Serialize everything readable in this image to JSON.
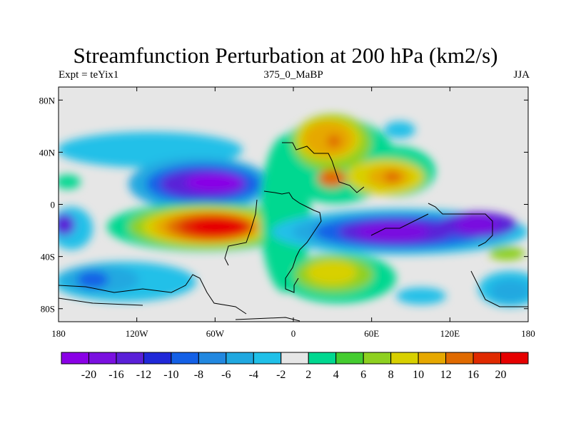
{
  "title": "Streamfunction Perturbation at 200 hPa (km2/s)",
  "left_string": "Expt = teYix1",
  "center_string": "375_0_MaBP",
  "right_string": "JJA",
  "lat_ticks": [
    "80N",
    "40N",
    "0",
    "40S",
    "80S"
  ],
  "lon_ticks": [
    "180",
    "120W",
    "60W",
    "0",
    "60E",
    "120E",
    "180"
  ],
  "colorbar": {
    "colors": [
      "#8a00e6",
      "#7a10e0",
      "#5a20d8",
      "#2028d8",
      "#1460e6",
      "#2288e0",
      "#20a8e0",
      "#20c0e8",
      "#e6e6e6",
      "#00d890",
      "#44cc30",
      "#8ed020",
      "#d8d000",
      "#e6a800",
      "#e06a00",
      "#e02a00",
      "#e60000"
    ],
    "labels": [
      "-20",
      "-16",
      "-12",
      "-10",
      "-8",
      "-6",
      "-4",
      "-2",
      "2",
      "4",
      "6",
      "8",
      "10",
      "12",
      "16",
      "20"
    ]
  },
  "field_features": [
    {
      "lon": -90,
      "lat": 15,
      "value": -18
    },
    {
      "lon": -60,
      "lat": -16,
      "value": 21
    },
    {
      "lon": 30,
      "lat": 50,
      "value": 12
    },
    {
      "lon": 30,
      "lat": 20,
      "value": 14
    },
    {
      "lon": 75,
      "lat": 20,
      "value": 12
    },
    {
      "lon": 80,
      "lat": -22,
      "value": -20
    },
    {
      "lon": 140,
      "lat": -16,
      "value": -16
    },
    {
      "lon": 40,
      "lat": -55,
      "value": 9
    },
    {
      "lon": -160,
      "lat": -55,
      "value": -10
    },
    {
      "lon": 160,
      "lat": 30,
      "value": -4
    },
    {
      "lon": -30,
      "lat": -10,
      "value": 5
    }
  ]
}
